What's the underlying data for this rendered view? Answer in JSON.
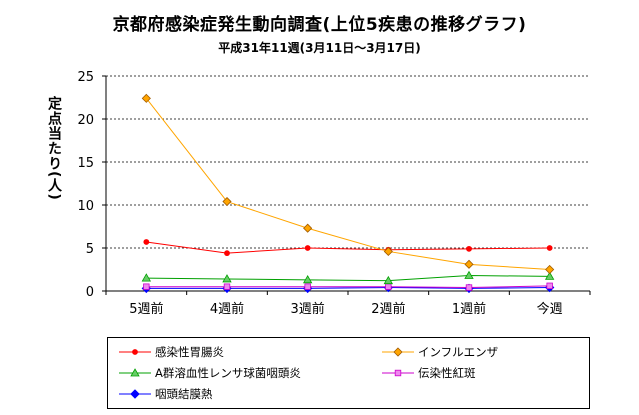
{
  "chart_data": {
    "type": "line",
    "title": "京都府感染症発生動向調査(上位5疾患の推移グラフ)",
    "subtitle": "平成31年11週(3月11日～3月17日)",
    "ylabel": "定点当たり(人)",
    "xlabel": "",
    "categories": [
      "5週前",
      "4週前",
      "3週前",
      "2週前",
      "1週前",
      "今週"
    ],
    "ylim": [
      0,
      25
    ],
    "yticks": [
      0,
      5,
      10,
      15,
      20,
      25
    ],
    "grid": "horizontal-dashed",
    "legend_position": "bottom",
    "series": [
      {
        "name": "感染性胃腸炎",
        "color": "#ff0000",
        "marker": "circle",
        "values": [
          5.7,
          4.4,
          5.0,
          4.8,
          4.9,
          5.0
        ]
      },
      {
        "name": "インフルエンザ",
        "color": "#ffa500",
        "marker": "diamond-filled",
        "values": [
          22.4,
          10.4,
          7.3,
          4.6,
          3.1,
          2.5
        ]
      },
      {
        "name": "A群溶血性レンサ球菌咽頭炎",
        "color": "#00a000",
        "marker": "triangle",
        "values": [
          1.5,
          1.4,
          1.3,
          1.2,
          1.8,
          1.7
        ]
      },
      {
        "name": "伝染性紅斑",
        "color": "#cc00cc",
        "marker": "square",
        "values": [
          0.5,
          0.5,
          0.5,
          0.5,
          0.4,
          0.6
        ]
      },
      {
        "name": "咽頭結膜熱",
        "color": "#0000ff",
        "marker": "diamond",
        "values": [
          0.3,
          0.3,
          0.3,
          0.4,
          0.3,
          0.4
        ]
      }
    ]
  }
}
